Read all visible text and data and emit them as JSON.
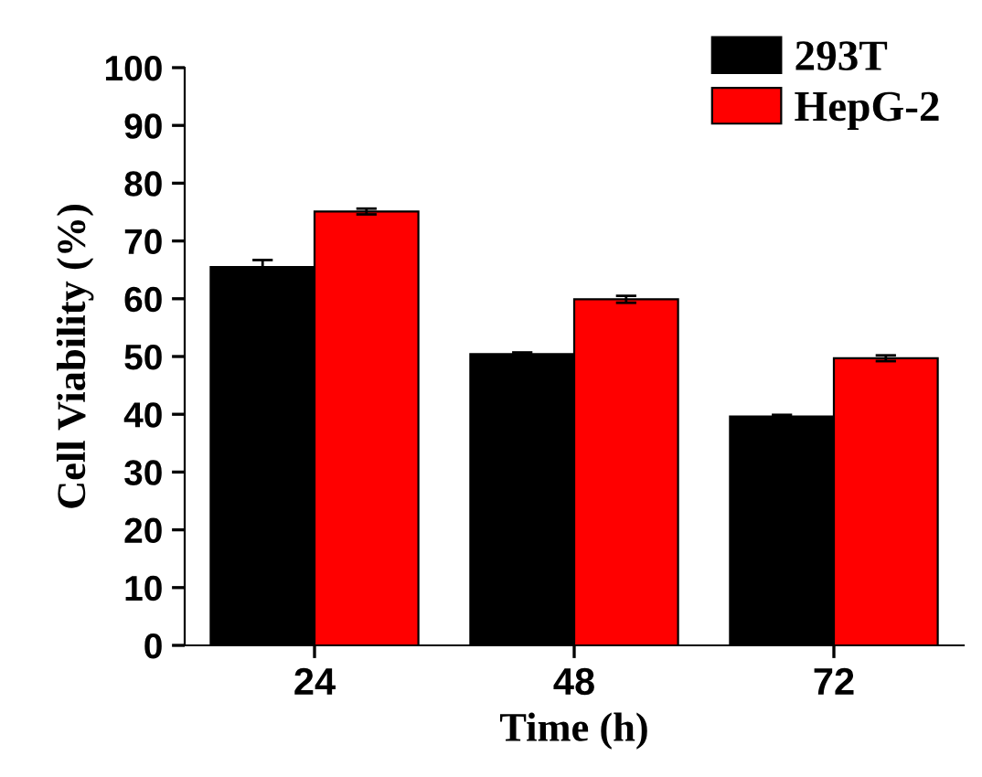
{
  "chart_data": {
    "type": "bar",
    "xlabel": "Time (h)",
    "ylabel": "Cell Viability (%)",
    "categories": [
      "24",
      "48",
      "72"
    ],
    "series": [
      {
        "name": "293T",
        "color": "#000000",
        "values": [
          65.5,
          50.4,
          39.6
        ],
        "errors": [
          1.2,
          0.3,
          0.3
        ]
      },
      {
        "name": "HepG-2",
        "color": "#ff0000",
        "values": [
          75.1,
          59.9,
          49.7
        ],
        "errors": [
          0.5,
          0.6,
          0.5
        ]
      }
    ],
    "ylim": [
      0,
      100
    ],
    "yticks": [
      0,
      10,
      20,
      30,
      40,
      50,
      60,
      70,
      80,
      90,
      100
    ],
    "grid": false,
    "legend": "top right"
  }
}
